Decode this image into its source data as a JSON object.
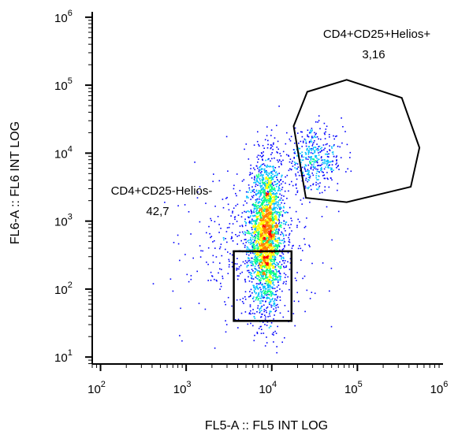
{
  "chart_data": {
    "type": "scatter",
    "subtype": "flow-cytometry-density-dot-plot",
    "xlabel": "FL5-A :: FL5 INT LOG",
    "ylabel": "FL6-A :: FL6 INT LOG",
    "x_scale": "log",
    "y_scale": "log",
    "xlim": [
      80,
      1000000
    ],
    "ylim": [
      7.9,
      1200000
    ],
    "x_ticks": [
      {
        "value": 100,
        "base": "10",
        "exp": "2"
      },
      {
        "value": 1000,
        "base": "10",
        "exp": "3"
      },
      {
        "value": 10000,
        "base": "10",
        "exp": "4"
      },
      {
        "value": 100000,
        "base": "10",
        "exp": "5"
      },
      {
        "value": 1000000,
        "base": "10",
        "exp": "6"
      }
    ],
    "y_ticks": [
      {
        "value": 10,
        "base": "10",
        "exp": "1"
      },
      {
        "value": 100,
        "base": "10",
        "exp": "2"
      },
      {
        "value": 1000,
        "base": "10",
        "exp": "3"
      },
      {
        "value": 10000,
        "base": "10",
        "exp": "4"
      },
      {
        "value": 100000,
        "base": "10",
        "exp": "5"
      },
      {
        "value": 1000000,
        "base": "10",
        "exp": "6"
      }
    ],
    "grid": false,
    "color_scale": [
      "#0000ff",
      "#00bfff",
      "#00ff80",
      "#ffff00",
      "#ff8000",
      "#ff0000"
    ],
    "populations": [
      {
        "center": [
          8500,
          650
        ],
        "spread": [
          0.09,
          0.55
        ],
        "count": 2600
      },
      {
        "center": [
          30000,
          8000
        ],
        "spread": [
          0.18,
          0.22
        ],
        "count": 450
      },
      {
        "center": [
          6000,
          400
        ],
        "spread": [
          0.35,
          0.55
        ],
        "count": 500
      }
    ],
    "gates": [
      {
        "name": "CD4+CD25+Helios+",
        "value": "3,16",
        "shape": "polygon",
        "vertices": [
          [
            18000,
            25000
          ],
          [
            26000,
            80000
          ],
          [
            75000,
            120000
          ],
          [
            330000,
            65000
          ],
          [
            530000,
            12000
          ],
          [
            420000,
            3200
          ],
          [
            75000,
            1900
          ],
          [
            25000,
            2200
          ]
        ]
      },
      {
        "name": "CD4+CD25-Helios-",
        "value": "42,7",
        "shape": "rectangle",
        "x_range": [
          3600,
          17000
        ],
        "y_range": [
          34,
          360
        ]
      }
    ]
  }
}
